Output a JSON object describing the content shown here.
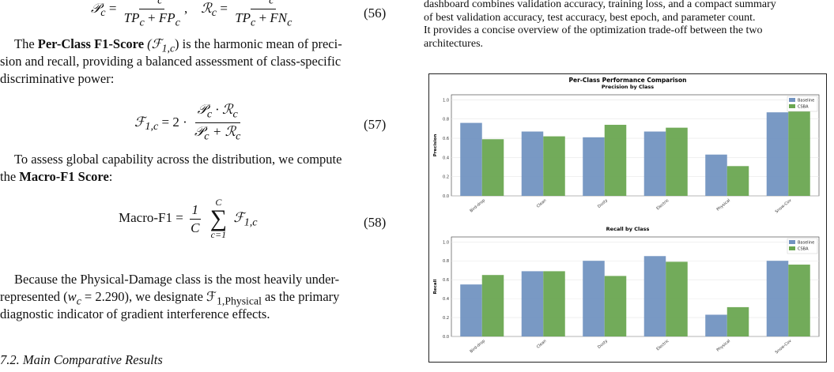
{
  "left": {
    "eq56": {
      "lhs1": "𝒫",
      "sub1": "c",
      "num1": "TP",
      "num1sub": "c",
      "den1": "TP",
      "den1sub": "c",
      "den1b": "FP",
      "den1bsub": "c",
      "lhs2": "ℛ",
      "sub2": "c",
      "num2": "TP",
      "num2sub": "c",
      "den2": "TP",
      "den2sub": "c",
      "den2b": "FN",
      "den2bsub": "c",
      "number": "(56)"
    },
    "p1_pre": "The ",
    "p1_bold": "Per-Class F1-Score",
    "p1_sym": " (ℱ",
    "p1_sub": "1,c",
    "p1_post1": ") is the harmonic mean of preci-",
    "p1_line2": "sion and recall, providing a balanced assessment of class-specific",
    "p1_line3": "discriminative power:",
    "eq57": {
      "lhs": "ℱ",
      "lhs_sub": "1,c",
      "eq": "= 2 ·",
      "num": "𝒫",
      "num_sub": "c",
      "num_dot": " · ℛ",
      "num_sub2": "c",
      "den": "𝒫",
      "den_sub": "c",
      "den_plus": " + ℛ",
      "den_sub2": "c",
      "number": "(57)"
    },
    "p2_line1": "To assess global capability across the distribution, we compute",
    "p2_pre": "the ",
    "p2_bold": "Macro-F1 Score",
    "p2_post": ":",
    "eq58": {
      "lhs": "Macro-F1 =",
      "num": "1",
      "den": "C",
      "sum_top": "C",
      "sum_bottom": "c=1",
      "term": "ℱ",
      "term_sub": "1,c",
      "number": "(58)"
    },
    "p3_line1": "Because the Physical-Damage class is the most heavily under-",
    "p3_line2_pre": "represented (",
    "p3_w": "w",
    "p3_wsub": "c",
    "p3_weq": " = 2.290), we designate ℱ",
    "p3_fsub": "1,Physical",
    "p3_line2_post": " as the primary",
    "p3_line3": "diagnostic indicator of gradient interference effects.",
    "section": "7.2.  Main Comparative Results"
  },
  "right": {
    "text_line1": "dashboard combines validation accuracy, training loss, and a compact summary",
    "text_line2": "of best validation accuracy, test accuracy, best epoch, and parameter count.",
    "text_line3": "It provides a concise overview of the optimization trade-off between the two",
    "text_line4": "architectures."
  },
  "chart_data": {
    "type": "bar",
    "title": "Per-Class Performance Comparison",
    "categories": [
      "Bird-drop",
      "Clean",
      "Dusty",
      "Electric",
      "Physical",
      "Snow-Cov"
    ],
    "colors": {
      "Baseline": "#7293c1",
      "CSBA": "#6aa651"
    },
    "legend_placement": "top-right",
    "grid": true,
    "panels": [
      {
        "subtitle": "Precision by Class",
        "ylabel": "Precision",
        "ylim": [
          0,
          1.0
        ],
        "yticks": [
          "0.0",
          "0.2",
          "0.4",
          "0.6",
          "0.8",
          "1.0"
        ],
        "series": [
          {
            "name": "Baseline",
            "values": [
              0.76,
              0.67,
              0.61,
              0.67,
              0.43,
              0.87
            ]
          },
          {
            "name": "CSBA",
            "values": [
              0.59,
              0.62,
              0.74,
              0.71,
              0.31,
              0.91
            ]
          }
        ]
      },
      {
        "subtitle": "Recall by Class",
        "ylabel": "Recall",
        "ylim": [
          0,
          1.0
        ],
        "yticks": [
          "0.0",
          "0.2",
          "0.4",
          "0.6",
          "0.8",
          "1.0"
        ],
        "series": [
          {
            "name": "Baseline",
            "values": [
              0.55,
              0.69,
              0.8,
              0.85,
              0.23,
              0.8
            ]
          },
          {
            "name": "CSBA",
            "values": [
              0.65,
              0.69,
              0.64,
              0.79,
              0.31,
              0.76
            ]
          }
        ]
      }
    ]
  }
}
